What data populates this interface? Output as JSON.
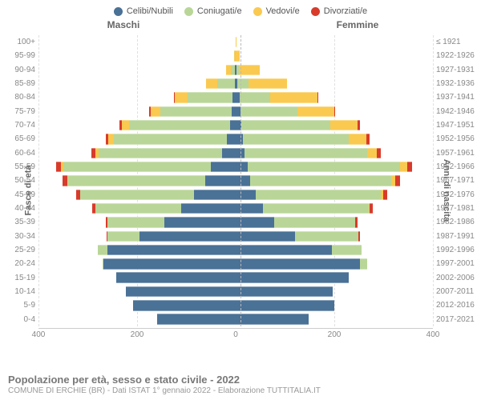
{
  "legend": [
    {
      "label": "Celibi/Nubili",
      "color": "#4a7196"
    },
    {
      "label": "Coniugati/e",
      "color": "#b9d698"
    },
    {
      "label": "Vedovi/e",
      "color": "#fac94f"
    },
    {
      "label": "Divorziati/e",
      "color": "#d83b2a"
    }
  ],
  "header": {
    "male": "Maschi",
    "female": "Femmine"
  },
  "axis_titles": {
    "left": "Fasce di età",
    "right": "Anni di nascita"
  },
  "footer": {
    "title": "Popolazione per età, sesso e stato civile - 2022",
    "sub": "COMUNE DI ERCHIE (BR) - Dati ISTAT 1° gennaio 2022 - Elaborazione TUTTITALIA.IT"
  },
  "x_max": 400,
  "x_ticks": [
    400,
    200,
    0,
    200,
    400
  ],
  "colors": {
    "single": "#4a7196",
    "married": "#b9d698",
    "widowed": "#fac94f",
    "divorced": "#d83b2a",
    "grid": "#e0e0e0",
    "center": "#bbbbbb",
    "label": "#888888"
  },
  "rows": [
    {
      "age": "100+",
      "years": "≤ 1921",
      "m": {
        "s": 0,
        "m": 0,
        "w": 0,
        "d": 0
      },
      "f": {
        "s": 0,
        "m": 0,
        "w": 2,
        "d": 0
      }
    },
    {
      "age": "95-99",
      "years": "1922-1926",
      "m": {
        "s": 0,
        "m": 1,
        "w": 3,
        "d": 0
      },
      "f": {
        "s": 0,
        "m": 0,
        "w": 8,
        "d": 0
      }
    },
    {
      "age": "90-94",
      "years": "1927-1931",
      "m": {
        "s": 1,
        "m": 8,
        "w": 10,
        "d": 0
      },
      "f": {
        "s": 2,
        "m": 4,
        "w": 42,
        "d": 0
      }
    },
    {
      "age": "85-89",
      "years": "1932-1936",
      "m": {
        "s": 2,
        "m": 36,
        "w": 22,
        "d": 0
      },
      "f": {
        "s": 4,
        "m": 22,
        "w": 78,
        "d": 0
      }
    },
    {
      "age": "80-84",
      "years": "1937-1941",
      "m": {
        "s": 6,
        "m": 92,
        "w": 26,
        "d": 2
      },
      "f": {
        "s": 8,
        "m": 62,
        "w": 96,
        "d": 2
      }
    },
    {
      "age": "75-79",
      "years": "1942-1946",
      "m": {
        "s": 8,
        "m": 145,
        "w": 20,
        "d": 2
      },
      "f": {
        "s": 10,
        "m": 115,
        "w": 75,
        "d": 2
      }
    },
    {
      "age": "70-74",
      "years": "1947-1951",
      "m": {
        "s": 12,
        "m": 205,
        "w": 14,
        "d": 5
      },
      "f": {
        "s": 12,
        "m": 180,
        "w": 55,
        "d": 5
      }
    },
    {
      "age": "65-69",
      "years": "1952-1956",
      "m": {
        "s": 18,
        "m": 230,
        "w": 10,
        "d": 6
      },
      "f": {
        "s": 14,
        "m": 215,
        "w": 36,
        "d": 6
      }
    },
    {
      "age": "60-64",
      "years": "1957-1961",
      "m": {
        "s": 28,
        "m": 250,
        "w": 6,
        "d": 8
      },
      "f": {
        "s": 18,
        "m": 248,
        "w": 20,
        "d": 8
      }
    },
    {
      "age": "55-59",
      "years": "1962-1966",
      "m": {
        "s": 50,
        "m": 300,
        "w": 4,
        "d": 10
      },
      "f": {
        "s": 24,
        "m": 310,
        "w": 14,
        "d": 10
      }
    },
    {
      "age": "50-54",
      "years": "1967-1971",
      "m": {
        "s": 62,
        "m": 278,
        "w": 2,
        "d": 10
      },
      "f": {
        "s": 30,
        "m": 285,
        "w": 8,
        "d": 10
      }
    },
    {
      "age": "45-49",
      "years": "1972-1976",
      "m": {
        "s": 85,
        "m": 230,
        "w": 0,
        "d": 8
      },
      "f": {
        "s": 40,
        "m": 255,
        "w": 4,
        "d": 8
      }
    },
    {
      "age": "40-44",
      "years": "1977-1981",
      "m": {
        "s": 110,
        "m": 175,
        "w": 0,
        "d": 6
      },
      "f": {
        "s": 55,
        "m": 215,
        "w": 2,
        "d": 6
      }
    },
    {
      "age": "35-39",
      "years": "1982-1986",
      "m": {
        "s": 145,
        "m": 115,
        "w": 0,
        "d": 4
      },
      "f": {
        "s": 78,
        "m": 165,
        "w": 0,
        "d": 4
      }
    },
    {
      "age": "30-34",
      "years": "1987-1991",
      "m": {
        "s": 195,
        "m": 65,
        "w": 0,
        "d": 2
      },
      "f": {
        "s": 120,
        "m": 128,
        "w": 0,
        "d": 4
      }
    },
    {
      "age": "25-29",
      "years": "1992-1996",
      "m": {
        "s": 260,
        "m": 20,
        "w": 0,
        "d": 0
      },
      "f": {
        "s": 195,
        "m": 60,
        "w": 0,
        "d": 0
      }
    },
    {
      "age": "20-24",
      "years": "1997-2001",
      "m": {
        "s": 268,
        "m": 2,
        "w": 0,
        "d": 0
      },
      "f": {
        "s": 252,
        "m": 14,
        "w": 0,
        "d": 0
      }
    },
    {
      "age": "15-19",
      "years": "2002-2006",
      "m": {
        "s": 242,
        "m": 0,
        "w": 0,
        "d": 0
      },
      "f": {
        "s": 230,
        "m": 0,
        "w": 0,
        "d": 0
      }
    },
    {
      "age": "10-14",
      "years": "2007-2011",
      "m": {
        "s": 222,
        "m": 0,
        "w": 0,
        "d": 0
      },
      "f": {
        "s": 196,
        "m": 0,
        "w": 0,
        "d": 0
      }
    },
    {
      "age": "5-9",
      "years": "2012-2016",
      "m": {
        "s": 208,
        "m": 0,
        "w": 0,
        "d": 0
      },
      "f": {
        "s": 200,
        "m": 0,
        "w": 0,
        "d": 0
      }
    },
    {
      "age": "0-4",
      "years": "2017-2021",
      "m": {
        "s": 160,
        "m": 0,
        "w": 0,
        "d": 0
      },
      "f": {
        "s": 148,
        "m": 0,
        "w": 0,
        "d": 0
      }
    }
  ]
}
